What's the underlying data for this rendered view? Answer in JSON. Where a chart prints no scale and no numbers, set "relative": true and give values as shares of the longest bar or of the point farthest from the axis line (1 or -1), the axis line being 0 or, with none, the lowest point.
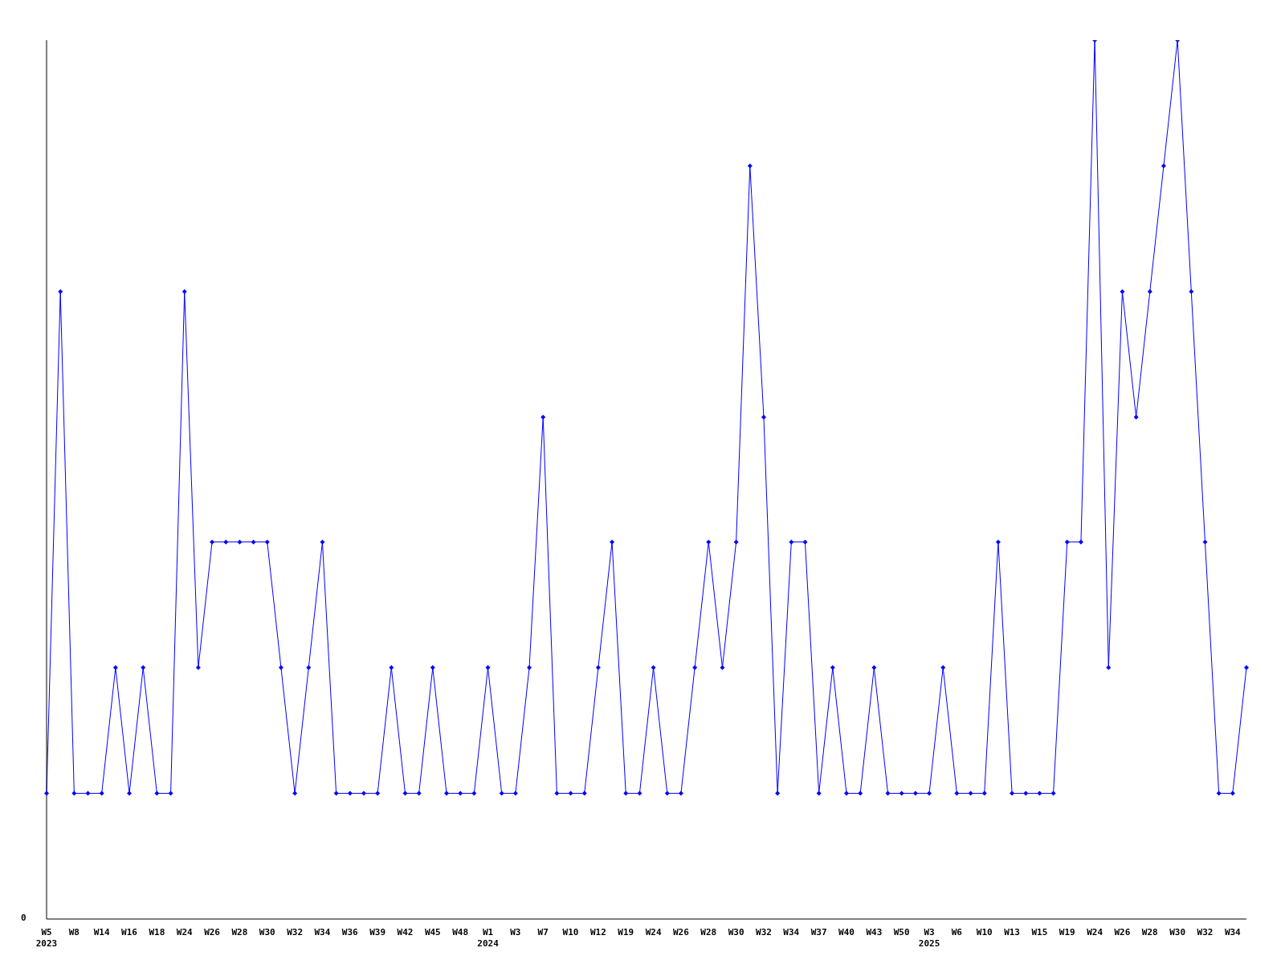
{
  "chart_data": {
    "type": "line",
    "relative": true,
    "marker": "diamond",
    "grid": false,
    "legend": false,
    "annotations": [
      "0"
    ],
    "categories": [
      "W5\n2023",
      null,
      "W8",
      null,
      "W14",
      null,
      "W16",
      null,
      "W18",
      null,
      "W24",
      null,
      "W26",
      null,
      "W28",
      null,
      "W30",
      null,
      "W32",
      null,
      "W34",
      null,
      "W36",
      null,
      "W39",
      null,
      "W42",
      null,
      "W45",
      null,
      "W48",
      null,
      "W1\n2024",
      null,
      "W3",
      null,
      "W7",
      null,
      "W10",
      null,
      "W12",
      null,
      "W19",
      null,
      "W24",
      null,
      "W26",
      null,
      "W28",
      null,
      "W30",
      null,
      "W32",
      null,
      "W34",
      null,
      "W37",
      null,
      "W40",
      null,
      "W43",
      null,
      "W50",
      null,
      "W3\n2025",
      null,
      "W6",
      null,
      "W10",
      null,
      "W13",
      null,
      "W15",
      null,
      "W19",
      null,
      "W24",
      null,
      "W26",
      null,
      "W28",
      null,
      "W30",
      null,
      "W32",
      null,
      "W34",
      null
    ],
    "series": [
      {
        "color": "#0000ff",
        "values": [
          0.143,
          0.714,
          0.143,
          0.143,
          0.143,
          0.286,
          0.143,
          0.286,
          0.143,
          0.143,
          0.714,
          0.286,
          0.429,
          0.429,
          0.429,
          0.429,
          0.429,
          0.286,
          0.143,
          0.286,
          0.429,
          0.143,
          0.143,
          0.143,
          0.143,
          0.286,
          0.143,
          0.143,
          0.286,
          0.143,
          0.143,
          0.143,
          0.286,
          0.143,
          0.143,
          0.286,
          0.571,
          0.143,
          0.143,
          0.143,
          0.286,
          0.429,
          0.143,
          0.143,
          0.286,
          0.143,
          0.143,
          0.286,
          0.429,
          0.286,
          0.429,
          0.857,
          0.571,
          0.143,
          0.429,
          0.429,
          0.143,
          0.286,
          0.143,
          0.143,
          0.286,
          0.143,
          0.143,
          0.143,
          0.143,
          0.286,
          0.143,
          0.143,
          0.143,
          0.429,
          0.143,
          0.143,
          0.143,
          0.143,
          0.429,
          0.429,
          1,
          0.286,
          0.714,
          0.571,
          0.714,
          0.857,
          1,
          0.714,
          0.429,
          0.143,
          0.143,
          0.286
        ]
      }
    ]
  }
}
